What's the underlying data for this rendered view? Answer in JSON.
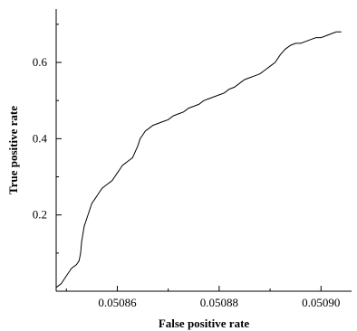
{
  "chart_data": {
    "type": "line",
    "title": "",
    "xlabel": "False positive rate",
    "ylabel": "True positive rate",
    "xlim": [
      0.050848,
      0.050906
    ],
    "ylim": [
      0.0,
      0.74
    ],
    "x_ticks": [
      {
        "value": 0.05086,
        "label": "0.05086"
      },
      {
        "value": 0.05088,
        "label": "0.05088"
      },
      {
        "value": 0.0509,
        "label": "0.05090"
      }
    ],
    "y_ticks": [
      {
        "value": 0.2,
        "label": "0.2"
      },
      {
        "value": 0.4,
        "label": "0.4"
      },
      {
        "value": 0.6,
        "label": "0.6"
      }
    ],
    "x_minor_ticks": [
      0.05085,
      0.05087,
      0.05089
    ],
    "y_minor_ticks": [
      0.1,
      0.3,
      0.5,
      0.7
    ],
    "grid": false,
    "legend": "none",
    "series": [
      {
        "color": "#000000",
        "x": [
          0.050848,
          0.050849,
          0.0508495,
          0.05085,
          0.0508505,
          0.050851,
          0.0508515,
          0.050852,
          0.0508525,
          0.0508528,
          0.050853,
          0.0508535,
          0.050854,
          0.0508545,
          0.050855,
          0.0508555,
          0.050856,
          0.0508565,
          0.050857,
          0.050858,
          0.0508585,
          0.050859,
          0.0508595,
          0.05086,
          0.0508605,
          0.050861,
          0.0508615,
          0.050862,
          0.0508625,
          0.050863,
          0.0508635,
          0.050864,
          0.0508645,
          0.050865,
          0.0508655,
          0.050866,
          0.0508665,
          0.050867,
          0.050868,
          0.050869,
          0.05087,
          0.050871,
          0.050872,
          0.050873,
          0.050874,
          0.050875,
          0.050876,
          0.050877,
          0.050878,
          0.050879,
          0.05088,
          0.050881,
          0.050882,
          0.050883,
          0.050884,
          0.050885,
          0.050886,
          0.050887,
          0.050888,
          0.050889,
          0.05089,
          0.050891,
          0.050892,
          0.050893,
          0.050894,
          0.050895,
          0.050896,
          0.050897,
          0.050898,
          0.050899,
          0.0509,
          0.050901,
          0.050902,
          0.050903,
          0.050904
        ],
        "y": [
          0.01,
          0.02,
          0.03,
          0.04,
          0.05,
          0.06,
          0.065,
          0.07,
          0.08,
          0.1,
          0.13,
          0.17,
          0.19,
          0.21,
          0.23,
          0.24,
          0.25,
          0.26,
          0.27,
          0.28,
          0.285,
          0.29,
          0.3,
          0.31,
          0.32,
          0.33,
          0.335,
          0.34,
          0.345,
          0.35,
          0.365,
          0.38,
          0.4,
          0.41,
          0.42,
          0.425,
          0.43,
          0.435,
          0.44,
          0.445,
          0.45,
          0.46,
          0.465,
          0.47,
          0.48,
          0.485,
          0.49,
          0.5,
          0.505,
          0.51,
          0.515,
          0.52,
          0.53,
          0.535,
          0.545,
          0.555,
          0.56,
          0.565,
          0.57,
          0.58,
          0.59,
          0.6,
          0.62,
          0.635,
          0.645,
          0.65,
          0.65,
          0.655,
          0.66,
          0.665,
          0.665,
          0.67,
          0.675,
          0.68,
          0.68
        ]
      }
    ]
  }
}
